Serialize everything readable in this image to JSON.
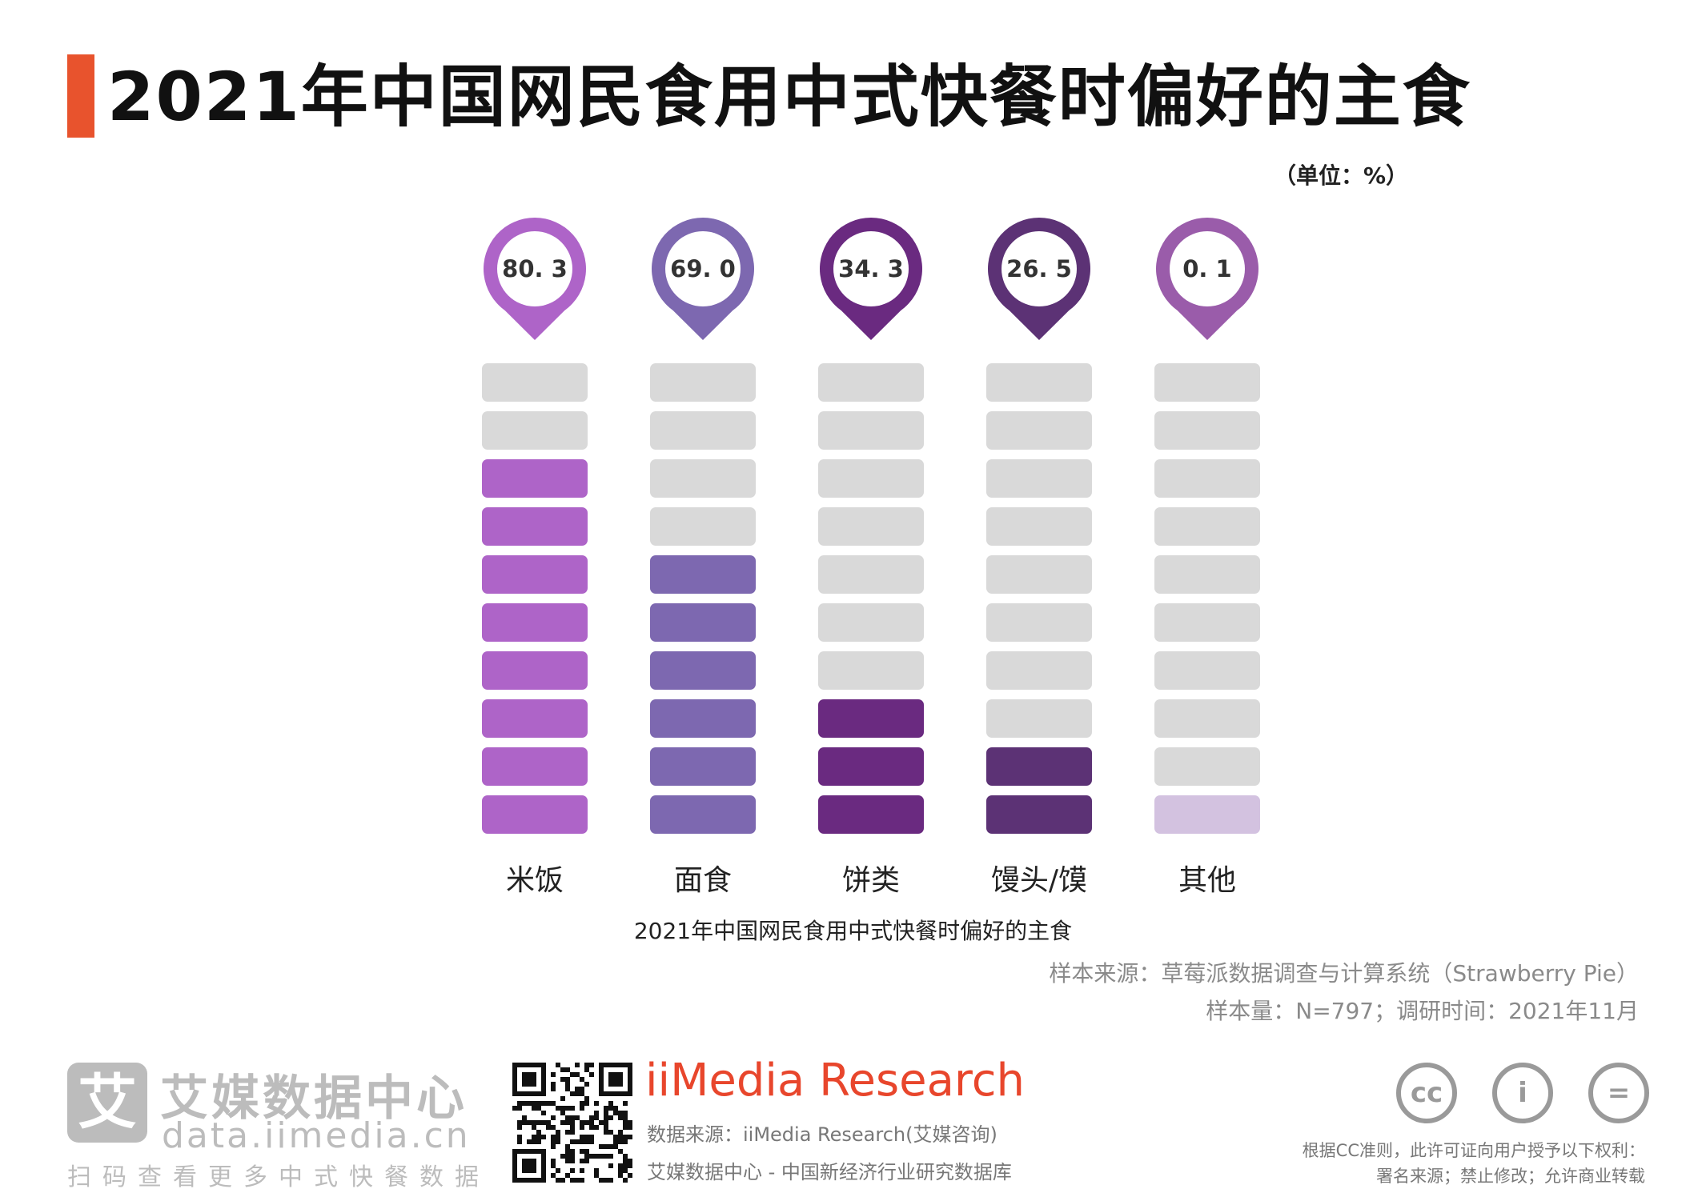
{
  "header": {
    "title": "2021年中国网民食用中式快餐时偏好的主食",
    "accent_color": "#e8532d",
    "unit": "（单位：%）"
  },
  "chart_data": {
    "type": "bar",
    "title": "2021年中国网民食用中式快餐时偏好的主食",
    "categories": [
      "米饭",
      "面食",
      "饼类",
      "馒头/馍",
      "其他"
    ],
    "values": [
      80.3,
      69.0,
      34.3,
      26.5,
      0.1
    ],
    "value_labels": [
      "80. 3",
      "69. 0",
      "34. 3",
      "26. 5",
      "0. 1"
    ],
    "ylim": [
      0,
      100
    ],
    "segments": 10,
    "colors": [
      "#ae64c8",
      "#7d68b0",
      "#6a2a80",
      "#5c3275",
      "#9a5caa"
    ],
    "partial_segment_color": "#d3c2e0",
    "empty_color": "#d9d9d9"
  },
  "footer": {
    "subtitle": "2021年中国网民食用中式快餐时偏好的主食",
    "source": "样本来源：草莓派数据调查与计算系统（Strawberry Pie）",
    "sample": "样本量：N=797；调研时间：2021年11月",
    "brand_logo_char": "艾",
    "brand_name": "艾媒数据中心",
    "brand_url": "data.iimedia.cn",
    "brand_scan": "扫码查看更多中式快餐数据",
    "iimedia_brand": "iiMedia Research",
    "data_source": "数据来源：iiMedia Research(艾媒咨询)",
    "database": "艾媒数据中心 - 中国新经济行业研究数据库",
    "cc_icons": [
      {
        "icon": "cc-icon",
        "glyph": "cc"
      },
      {
        "icon": "attribution-icon",
        "glyph": "i"
      },
      {
        "icon": "no-derivatives-icon",
        "glyph": "="
      }
    ],
    "cc_line1": "根据CC准则，此许可证向用户授予以下权利：",
    "cc_line2": "署名来源；禁止修改；允许商业转载"
  }
}
